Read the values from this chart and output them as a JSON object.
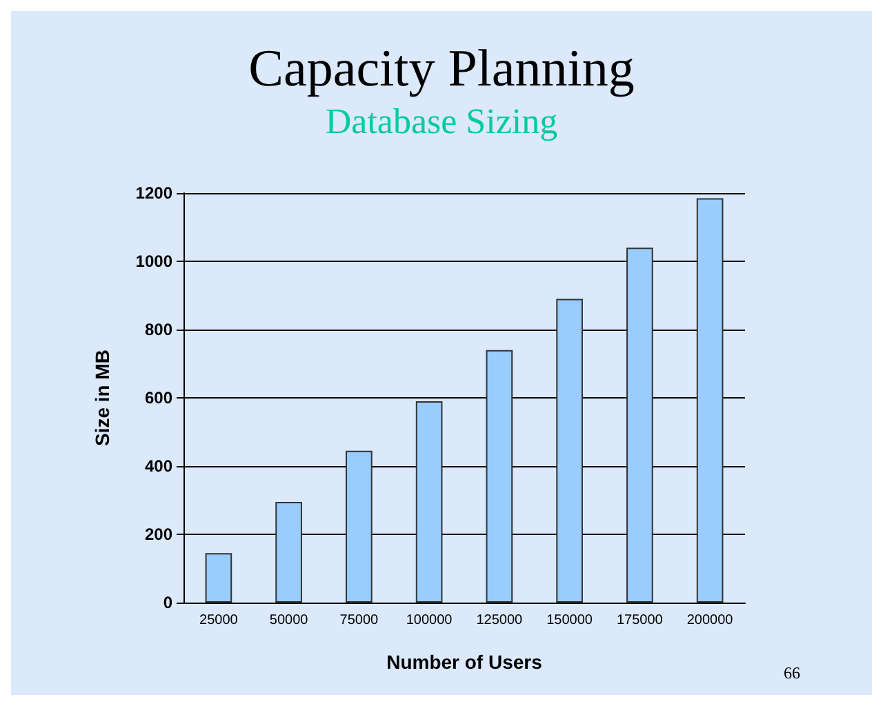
{
  "chart_data": {
    "type": "bar",
    "title": "Capacity Planning",
    "subtitle": "Database Sizing",
    "xlabel": "Number of Users",
    "ylabel": "Size in MB",
    "categories": [
      "25000",
      "50000",
      "75000",
      "100000",
      "125000",
      "150000",
      "175000",
      "200000"
    ],
    "values": [
      145,
      295,
      445,
      590,
      740,
      890,
      1040,
      1185
    ],
    "color": "#99ccff",
    "ylim": [
      0,
      1200
    ],
    "yticks": [
      0,
      200,
      400,
      600,
      800,
      1000,
      1200
    ],
    "grid": "y",
    "annotations": [
      "66"
    ]
  }
}
